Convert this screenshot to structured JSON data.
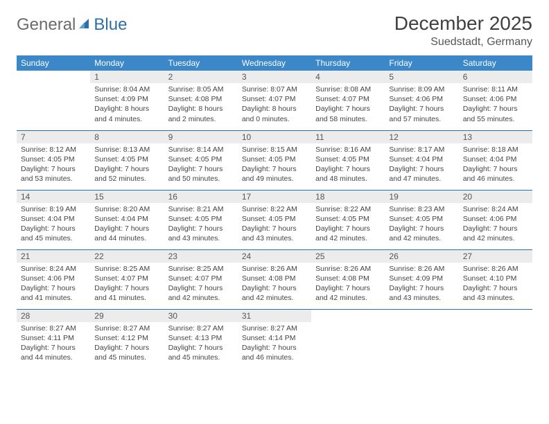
{
  "logo": {
    "text1": "General",
    "text2": "Blue"
  },
  "title": "December 2025",
  "location": "Suedstadt, Germany",
  "colors": {
    "header_bg": "#3b87c8",
    "header_text": "#ffffff",
    "daynum_bg": "#ececec",
    "rule": "#2f6fa8",
    "logo_gray": "#6b6b6b",
    "logo_blue": "#2f6fa8"
  },
  "weekdays": [
    "Sunday",
    "Monday",
    "Tuesday",
    "Wednesday",
    "Thursday",
    "Friday",
    "Saturday"
  ],
  "weeks": [
    [
      null,
      {
        "n": "1",
        "sr": "8:04 AM",
        "ss": "4:09 PM",
        "dl": "8 hours and 4 minutes."
      },
      {
        "n": "2",
        "sr": "8:05 AM",
        "ss": "4:08 PM",
        "dl": "8 hours and 2 minutes."
      },
      {
        "n": "3",
        "sr": "8:07 AM",
        "ss": "4:07 PM",
        "dl": "8 hours and 0 minutes."
      },
      {
        "n": "4",
        "sr": "8:08 AM",
        "ss": "4:07 PM",
        "dl": "7 hours and 58 minutes."
      },
      {
        "n": "5",
        "sr": "8:09 AM",
        "ss": "4:06 PM",
        "dl": "7 hours and 57 minutes."
      },
      {
        "n": "6",
        "sr": "8:11 AM",
        "ss": "4:06 PM",
        "dl": "7 hours and 55 minutes."
      }
    ],
    [
      {
        "n": "7",
        "sr": "8:12 AM",
        "ss": "4:05 PM",
        "dl": "7 hours and 53 minutes."
      },
      {
        "n": "8",
        "sr": "8:13 AM",
        "ss": "4:05 PM",
        "dl": "7 hours and 52 minutes."
      },
      {
        "n": "9",
        "sr": "8:14 AM",
        "ss": "4:05 PM",
        "dl": "7 hours and 50 minutes."
      },
      {
        "n": "10",
        "sr": "8:15 AM",
        "ss": "4:05 PM",
        "dl": "7 hours and 49 minutes."
      },
      {
        "n": "11",
        "sr": "8:16 AM",
        "ss": "4:05 PM",
        "dl": "7 hours and 48 minutes."
      },
      {
        "n": "12",
        "sr": "8:17 AM",
        "ss": "4:04 PM",
        "dl": "7 hours and 47 minutes."
      },
      {
        "n": "13",
        "sr": "8:18 AM",
        "ss": "4:04 PM",
        "dl": "7 hours and 46 minutes."
      }
    ],
    [
      {
        "n": "14",
        "sr": "8:19 AM",
        "ss": "4:04 PM",
        "dl": "7 hours and 45 minutes."
      },
      {
        "n": "15",
        "sr": "8:20 AM",
        "ss": "4:04 PM",
        "dl": "7 hours and 44 minutes."
      },
      {
        "n": "16",
        "sr": "8:21 AM",
        "ss": "4:05 PM",
        "dl": "7 hours and 43 minutes."
      },
      {
        "n": "17",
        "sr": "8:22 AM",
        "ss": "4:05 PM",
        "dl": "7 hours and 43 minutes."
      },
      {
        "n": "18",
        "sr": "8:22 AM",
        "ss": "4:05 PM",
        "dl": "7 hours and 42 minutes."
      },
      {
        "n": "19",
        "sr": "8:23 AM",
        "ss": "4:05 PM",
        "dl": "7 hours and 42 minutes."
      },
      {
        "n": "20",
        "sr": "8:24 AM",
        "ss": "4:06 PM",
        "dl": "7 hours and 42 minutes."
      }
    ],
    [
      {
        "n": "21",
        "sr": "8:24 AM",
        "ss": "4:06 PM",
        "dl": "7 hours and 41 minutes."
      },
      {
        "n": "22",
        "sr": "8:25 AM",
        "ss": "4:07 PM",
        "dl": "7 hours and 41 minutes."
      },
      {
        "n": "23",
        "sr": "8:25 AM",
        "ss": "4:07 PM",
        "dl": "7 hours and 42 minutes."
      },
      {
        "n": "24",
        "sr": "8:26 AM",
        "ss": "4:08 PM",
        "dl": "7 hours and 42 minutes."
      },
      {
        "n": "25",
        "sr": "8:26 AM",
        "ss": "4:08 PM",
        "dl": "7 hours and 42 minutes."
      },
      {
        "n": "26",
        "sr": "8:26 AM",
        "ss": "4:09 PM",
        "dl": "7 hours and 43 minutes."
      },
      {
        "n": "27",
        "sr": "8:26 AM",
        "ss": "4:10 PM",
        "dl": "7 hours and 43 minutes."
      }
    ],
    [
      {
        "n": "28",
        "sr": "8:27 AM",
        "ss": "4:11 PM",
        "dl": "7 hours and 44 minutes."
      },
      {
        "n": "29",
        "sr": "8:27 AM",
        "ss": "4:12 PM",
        "dl": "7 hours and 45 minutes."
      },
      {
        "n": "30",
        "sr": "8:27 AM",
        "ss": "4:13 PM",
        "dl": "7 hours and 45 minutes."
      },
      {
        "n": "31",
        "sr": "8:27 AM",
        "ss": "4:14 PM",
        "dl": "7 hours and 46 minutes."
      },
      null,
      null,
      null
    ]
  ],
  "labels": {
    "sunrise": "Sunrise:",
    "sunset": "Sunset:",
    "daylight": "Daylight:"
  }
}
